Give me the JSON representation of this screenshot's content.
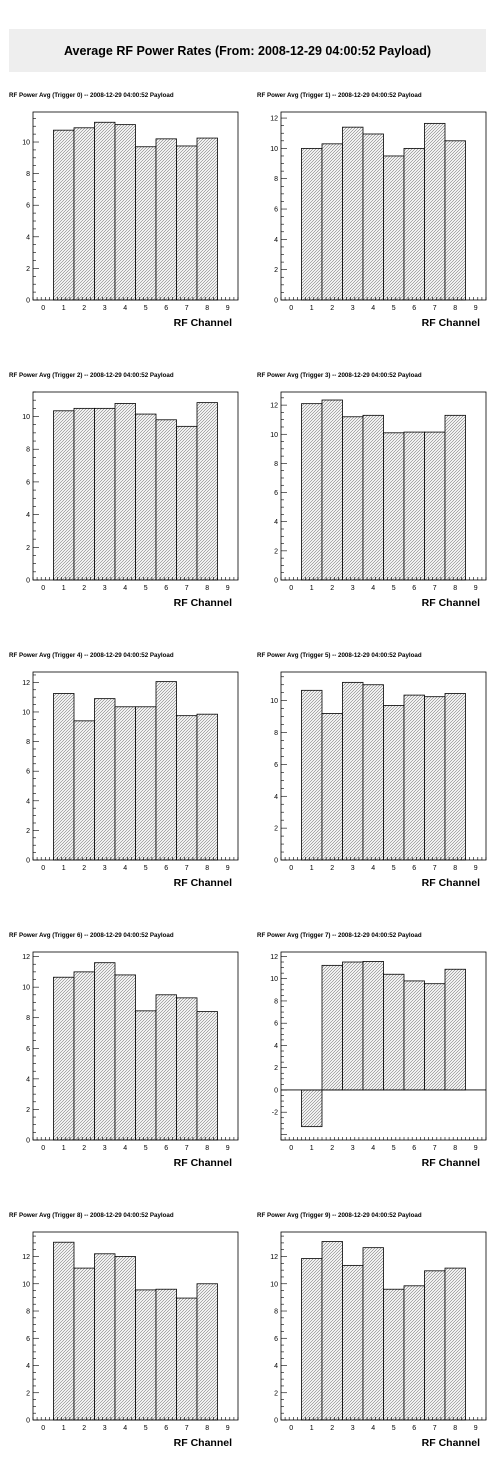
{
  "title": "Average RF Power Rates (From: 2008-12-29 04:00:52 Payload)",
  "chart_data": [
    {
      "type": "bar",
      "title": "RF Power Avg (Trigger 0) -- 2008-12-29 04:00:52 Payload",
      "xlabel": "RF Channel",
      "ylabel": "",
      "categories": [
        1,
        2,
        3,
        4,
        5,
        6,
        7,
        8
      ],
      "values": [
        10.75,
        10.9,
        11.25,
        11.1,
        9.7,
        10.2,
        9.75,
        10.25
      ],
      "xlim": [
        -0.5,
        9.5
      ],
      "ylim": [
        0,
        11.9
      ],
      "xticks": [
        0,
        1,
        2,
        3,
        4,
        5,
        6,
        7,
        8,
        9
      ],
      "yticks": [
        0,
        2,
        4,
        6,
        8,
        10
      ]
    },
    {
      "type": "bar",
      "title": "RF Power Avg (Trigger 1) -- 2008-12-29 04:00:52 Payload",
      "xlabel": "RF Channel",
      "ylabel": "",
      "categories": [
        1,
        2,
        3,
        4,
        5,
        6,
        7,
        8
      ],
      "values": [
        10.0,
        10.3,
        11.4,
        10.95,
        9.5,
        10.0,
        11.65,
        10.5
      ],
      "xlim": [
        -0.5,
        9.5
      ],
      "ylim": [
        0,
        12.4
      ],
      "xticks": [
        0,
        1,
        2,
        3,
        4,
        5,
        6,
        7,
        8,
        9
      ],
      "yticks": [
        0,
        2,
        4,
        6,
        8,
        10,
        12
      ]
    },
    {
      "type": "bar",
      "title": "RF Power Avg (Trigger 2) -- 2008-12-29 04:00:52 Payload",
      "xlabel": "RF Channel",
      "ylabel": "",
      "categories": [
        1,
        2,
        3,
        4,
        5,
        6,
        7,
        8
      ],
      "values": [
        10.35,
        10.5,
        10.5,
        10.8,
        10.15,
        9.8,
        9.4,
        10.85
      ],
      "xlim": [
        -0.5,
        9.5
      ],
      "ylim": [
        0,
        11.5
      ],
      "xticks": [
        0,
        1,
        2,
        3,
        4,
        5,
        6,
        7,
        8,
        9
      ],
      "yticks": [
        0,
        2,
        4,
        6,
        8,
        10
      ]
    },
    {
      "type": "bar",
      "title": "RF Power Avg (Trigger 3) -- 2008-12-29 04:00:52 Payload",
      "xlabel": "RF Channel",
      "ylabel": "",
      "categories": [
        1,
        2,
        3,
        4,
        5,
        6,
        7,
        8
      ],
      "values": [
        12.1,
        12.35,
        11.2,
        11.3,
        10.1,
        10.15,
        10.15,
        11.3
      ],
      "xlim": [
        -0.5,
        9.5
      ],
      "ylim": [
        0,
        12.9
      ],
      "xticks": [
        0,
        1,
        2,
        3,
        4,
        5,
        6,
        7,
        8,
        9
      ],
      "yticks": [
        0,
        2,
        4,
        6,
        8,
        10,
        12
      ]
    },
    {
      "type": "bar",
      "title": "RF Power Avg (Trigger 4) -- 2008-12-29 04:00:52 Payload",
      "xlabel": "RF Channel",
      "ylabel": "",
      "categories": [
        1,
        2,
        3,
        4,
        5,
        6,
        7,
        8
      ],
      "values": [
        11.25,
        9.4,
        10.9,
        10.35,
        10.35,
        12.05,
        9.75,
        9.85
      ],
      "xlim": [
        -0.5,
        9.5
      ],
      "ylim": [
        0,
        12.7
      ],
      "xticks": [
        0,
        1,
        2,
        3,
        4,
        5,
        6,
        7,
        8,
        9
      ],
      "yticks": [
        0,
        2,
        4,
        6,
        8,
        10,
        12
      ]
    },
    {
      "type": "bar",
      "title": "RF Power Avg (Trigger 5) -- 2008-12-29 04:00:52 Payload",
      "xlabel": "RF Channel",
      "ylabel": "",
      "categories": [
        1,
        2,
        3,
        4,
        5,
        6,
        7,
        8
      ],
      "values": [
        10.65,
        9.2,
        11.15,
        11.0,
        9.7,
        10.35,
        10.25,
        10.45
      ],
      "xlim": [
        -0.5,
        9.5
      ],
      "ylim": [
        0,
        11.8
      ],
      "xticks": [
        0,
        1,
        2,
        3,
        4,
        5,
        6,
        7,
        8,
        9
      ],
      "yticks": [
        0,
        2,
        4,
        6,
        8,
        10
      ]
    },
    {
      "type": "bar",
      "title": "RF Power Avg (Trigger 6) -- 2008-12-29 04:00:52 Payload",
      "xlabel": "RF Channel",
      "ylabel": "",
      "categories": [
        1,
        2,
        3,
        4,
        5,
        6,
        7,
        8
      ],
      "values": [
        10.65,
        11.0,
        11.6,
        10.8,
        8.45,
        9.5,
        9.3,
        8.4
      ],
      "xlim": [
        -0.5,
        9.5
      ],
      "ylim": [
        0,
        12.3
      ],
      "xticks": [
        0,
        1,
        2,
        3,
        4,
        5,
        6,
        7,
        8,
        9
      ],
      "yticks": [
        0,
        2,
        4,
        6,
        8,
        10,
        12
      ]
    },
    {
      "type": "bar",
      "title": "RF Power Avg (Trigger 7) -- 2008-12-29 04:00:52 Payload",
      "xlabel": "RF Channel",
      "ylabel": "",
      "categories": [
        1,
        2,
        3,
        4,
        5,
        6,
        7,
        8
      ],
      "values": [
        -3.3,
        11.2,
        11.5,
        11.55,
        10.4,
        9.8,
        9.55,
        10.85
      ],
      "xlim": [
        -0.5,
        9.5
      ],
      "ylim": [
        -4.5,
        12.4
      ],
      "xticks": [
        0,
        1,
        2,
        3,
        4,
        5,
        6,
        7,
        8,
        9
      ],
      "yticks": [
        -2,
        0,
        2,
        4,
        6,
        8,
        10,
        12
      ]
    },
    {
      "type": "bar",
      "title": "RF Power Avg (Trigger 8) -- 2008-12-29 04:00:52 Payload",
      "xlabel": "RF Channel",
      "ylabel": "",
      "categories": [
        1,
        2,
        3,
        4,
        5,
        6,
        7,
        8
      ],
      "values": [
        13.05,
        11.15,
        12.2,
        12.0,
        9.55,
        9.6,
        8.95,
        10.0
      ],
      "xlim": [
        -0.5,
        9.5
      ],
      "ylim": [
        0,
        13.8
      ],
      "xticks": [
        0,
        1,
        2,
        3,
        4,
        5,
        6,
        7,
        8,
        9
      ],
      "yticks": [
        0,
        2,
        4,
        6,
        8,
        10,
        12
      ]
    },
    {
      "type": "bar",
      "title": "RF Power Avg (Trigger 9) -- 2008-12-29 04:00:52 Payload",
      "xlabel": "RF Channel",
      "ylabel": "",
      "categories": [
        1,
        2,
        3,
        4,
        5,
        6,
        7,
        8
      ],
      "values": [
        11.85,
        13.1,
        11.35,
        12.65,
        9.6,
        9.85,
        10.95,
        11.15
      ],
      "xlim": [
        -0.5,
        9.5
      ],
      "ylim": [
        0,
        13.8
      ],
      "xticks": [
        0,
        1,
        2,
        3,
        4,
        5,
        6,
        7,
        8,
        9
      ],
      "yticks": [
        0,
        2,
        4,
        6,
        8,
        10,
        12
      ]
    }
  ]
}
